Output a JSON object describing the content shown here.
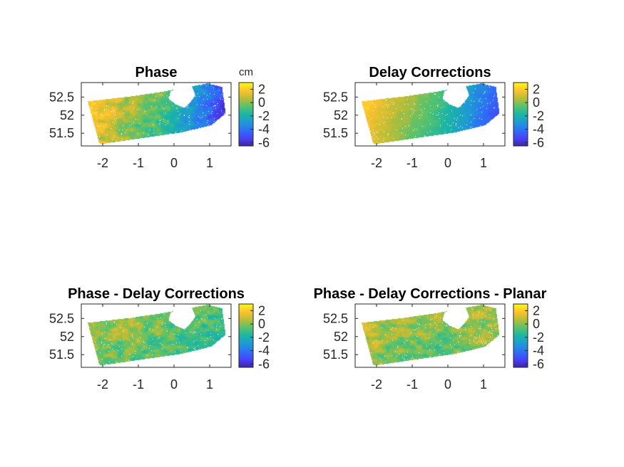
{
  "colorbar_unit": "cm",
  "colors": {
    "colormap": [
      "#3e26a8",
      "#4743f8",
      "#2c72f5",
      "#1e9bd3",
      "#1cb5a4",
      "#58c26c",
      "#b9bd37",
      "#fcc22e",
      "#f9fb15"
    ],
    "axis": "#262626",
    "mask": "#ffffff"
  },
  "chart_data": [
    {
      "type": "heatmap",
      "title": "Phase",
      "xlim": [
        -2.6,
        1.6
      ],
      "ylim": [
        51.15,
        52.9
      ],
      "xticks": [
        "-2",
        "-1",
        "0",
        "1"
      ],
      "yticks": [
        "51.5",
        "52",
        "52.5"
      ],
      "clim": [
        -6.5,
        3
      ],
      "colorbar_ticks": [
        "2",
        "0",
        "-2",
        "-4",
        "-6"
      ],
      "colorbar_label": "cm",
      "field": {
        "description_values": "west-east gradient",
        "west_cm": 2.0,
        "center_cm": -1.0,
        "east_cm": -5.5,
        "noise_cm": 0.8
      }
    },
    {
      "type": "heatmap",
      "title": "Delay Corrections",
      "xlim": [
        -2.6,
        1.6
      ],
      "ylim": [
        51.15,
        52.9
      ],
      "xticks": [
        "-2",
        "-1",
        "0",
        "1"
      ],
      "yticks": [
        "51.5",
        "52",
        "52.5"
      ],
      "clim": [
        -6.5,
        3
      ],
      "colorbar_ticks": [
        "2",
        "0",
        "-2",
        "-4",
        "-6"
      ],
      "colorbar_label": "",
      "field": {
        "west_cm": 2.0,
        "center_cm": -1.0,
        "east_cm": -5.0,
        "noise_cm": 0.25
      }
    },
    {
      "type": "heatmap",
      "title": "Phase - Delay Corrections",
      "xlim": [
        -2.6,
        1.6
      ],
      "ylim": [
        51.15,
        52.9
      ],
      "xticks": [
        "-2",
        "-1",
        "0",
        "1"
      ],
      "yticks": [
        "51.5",
        "52",
        "52.5"
      ],
      "clim": [
        -6.5,
        3
      ],
      "colorbar_ticks": [
        "2",
        "0",
        "-2",
        "-4",
        "-6"
      ],
      "colorbar_label": "",
      "field": {
        "west_cm": 0.3,
        "center_cm": -0.5,
        "east_cm": -1.5,
        "noise_cm": 0.9
      }
    },
    {
      "type": "heatmap",
      "title": "Phase - Delay Corrections - Planar",
      "xlim": [
        -2.6,
        1.6
      ],
      "ylim": [
        51.15,
        52.9
      ],
      "xticks": [
        "-2",
        "-1",
        "0",
        "1"
      ],
      "yticks": [
        "51.5",
        "52",
        "52.5"
      ],
      "clim": [
        -6.5,
        3
      ],
      "colorbar_ticks": [
        "2",
        "0",
        "-2",
        "-4",
        "-6"
      ],
      "colorbar_label": "",
      "field": {
        "west_cm": 0.5,
        "center_cm": -0.3,
        "east_cm": 0.2,
        "noise_cm": 0.9
      }
    }
  ]
}
